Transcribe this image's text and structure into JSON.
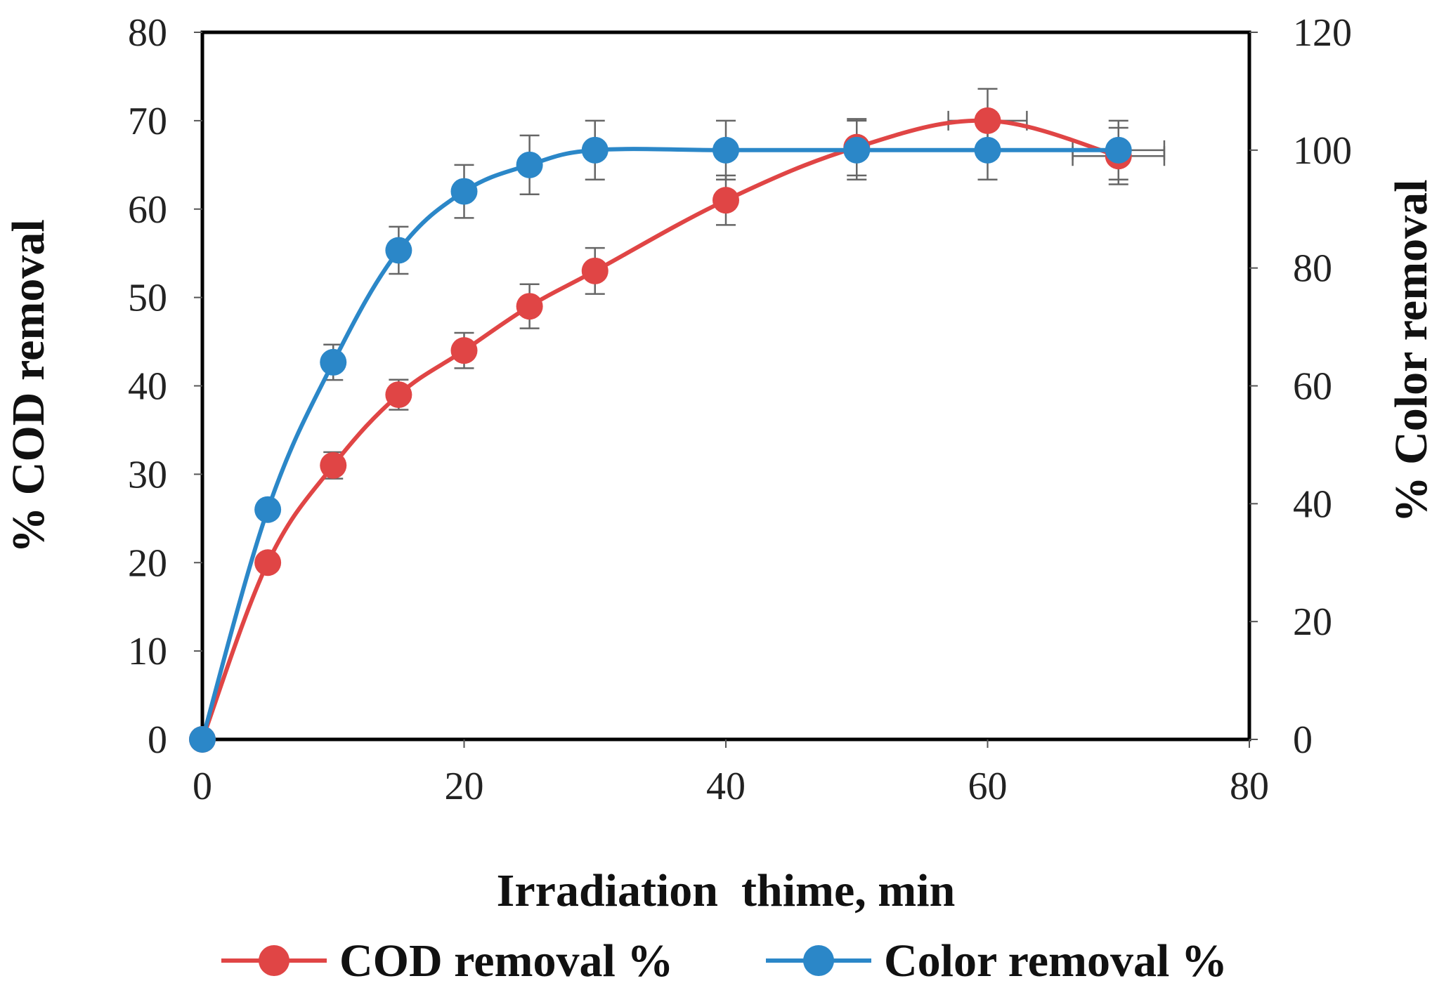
{
  "chart_data": {
    "type": "line",
    "xlabel": "Irradiation  thime, min",
    "ylabel": "% COD removal",
    "y2label": "% Color removal",
    "xlim": [
      0,
      80
    ],
    "ylim": [
      0,
      80
    ],
    "y2lim": [
      0,
      120
    ],
    "xticks": [
      0,
      20,
      40,
      60,
      80
    ],
    "yticks": [
      0,
      10,
      20,
      30,
      40,
      50,
      60,
      70,
      80
    ],
    "y2ticks": [
      0,
      20,
      40,
      60,
      80,
      100,
      120
    ],
    "grid": false,
    "legend_position": "bottom",
    "series": [
      {
        "name": "COD removal %",
        "axis": "left",
        "color": "#e04545",
        "x": [
          0,
          5,
          10,
          15,
          20,
          25,
          30,
          40,
          50,
          60,
          70
        ],
        "values": [
          0,
          20,
          31,
          39,
          44,
          49,
          53,
          61,
          67,
          70,
          66
        ],
        "y_error": [
          0,
          0,
          1.5,
          1.7,
          2,
          2.5,
          2.6,
          2.8,
          3.2,
          3.6,
          3.2
        ],
        "x_error": [
          0,
          0,
          0,
          0,
          0,
          0,
          0,
          0,
          0,
          3,
          3.5
        ]
      },
      {
        "name": "Color removal %",
        "axis": "right",
        "color": "#2b87c8",
        "x": [
          0,
          5,
          10,
          15,
          20,
          25,
          30,
          40,
          50,
          60,
          70
        ],
        "values": [
          0,
          39,
          64,
          83,
          93,
          97.5,
          100,
          100,
          100,
          100,
          100
        ],
        "y_error": [
          0,
          0,
          3,
          4,
          4.5,
          5,
          5,
          5,
          5,
          5,
          5
        ],
        "x_error": [
          0,
          0,
          0,
          0,
          0,
          0,
          0,
          0,
          0,
          0,
          3.5
        ]
      }
    ]
  }
}
